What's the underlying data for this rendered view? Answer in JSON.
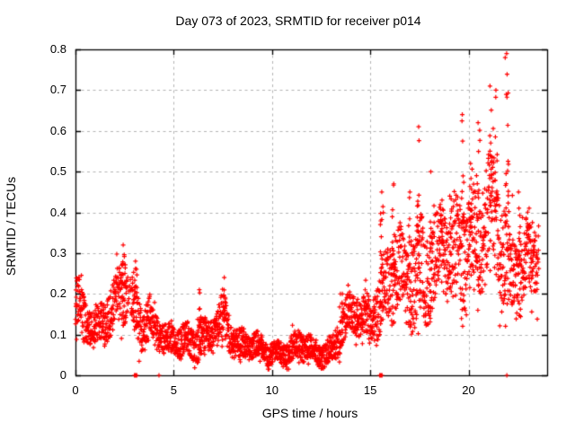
{
  "chart_data": {
    "type": "scatter",
    "title": "Day 073 of 2023, SRMTID for receiver p014",
    "xlabel": "GPS time / hours",
    "ylabel": "SRMTID / TECUs",
    "xlim": [
      0,
      24
    ],
    "ylim": [
      0,
      0.8
    ],
    "xticks": [
      0,
      5,
      10,
      15,
      20
    ],
    "yticks": [
      0,
      0.1,
      0.2,
      0.3,
      0.4,
      0.5,
      0.6,
      0.7,
      0.8
    ],
    "grid": true,
    "legend": "none",
    "marker": "plus",
    "marker_color": "#ff0000",
    "grid_color": "#b4b4b4",
    "axis_color": "#000000",
    "background_color": "#ffffff",
    "seed": 20230073,
    "dt": 0.008333,
    "t_end": 23.58,
    "envelope": [
      [
        0.0,
        0.17,
        0.07
      ],
      [
        0.5,
        0.13,
        0.045
      ],
      [
        1.0,
        0.12,
        0.04
      ],
      [
        1.5,
        0.15,
        0.055
      ],
      [
        2.0,
        0.16,
        0.06
      ],
      [
        2.4,
        0.2,
        0.08
      ],
      [
        2.7,
        0.17,
        0.06
      ],
      [
        3.0,
        0.16,
        0.07
      ],
      [
        3.4,
        0.13,
        0.05
      ],
      [
        3.7,
        0.15,
        0.06
      ],
      [
        4.1,
        0.11,
        0.04
      ],
      [
        4.5,
        0.085,
        0.035
      ],
      [
        5.0,
        0.08,
        0.03
      ],
      [
        5.5,
        0.09,
        0.04
      ],
      [
        6.0,
        0.085,
        0.035
      ],
      [
        6.3,
        0.1,
        0.05
      ],
      [
        6.7,
        0.085,
        0.035
      ],
      [
        7.1,
        0.1,
        0.04
      ],
      [
        7.5,
        0.13,
        0.055
      ],
      [
        7.9,
        0.11,
        0.045
      ],
      [
        8.3,
        0.08,
        0.035
      ],
      [
        8.8,
        0.075,
        0.03
      ],
      [
        9.3,
        0.065,
        0.03
      ],
      [
        9.8,
        0.05,
        0.025
      ],
      [
        10.3,
        0.06,
        0.025
      ],
      [
        10.8,
        0.065,
        0.03
      ],
      [
        11.3,
        0.07,
        0.035
      ],
      [
        11.8,
        0.065,
        0.03
      ],
      [
        12.3,
        0.05,
        0.025
      ],
      [
        12.8,
        0.06,
        0.03
      ],
      [
        13.2,
        0.08,
        0.035
      ],
      [
        13.6,
        0.12,
        0.045
      ],
      [
        14.0,
        0.14,
        0.045
      ],
      [
        14.5,
        0.15,
        0.05
      ],
      [
        15.0,
        0.14,
        0.05
      ],
      [
        15.5,
        0.19,
        0.08
      ],
      [
        16.0,
        0.22,
        0.09
      ],
      [
        16.4,
        0.24,
        0.1
      ],
      [
        16.8,
        0.21,
        0.08
      ],
      [
        17.2,
        0.25,
        0.11
      ],
      [
        17.6,
        0.28,
        0.12
      ],
      [
        18.0,
        0.26,
        0.1
      ],
      [
        18.4,
        0.27,
        0.1
      ],
      [
        18.8,
        0.3,
        0.1
      ],
      [
        19.2,
        0.3,
        0.11
      ],
      [
        19.6,
        0.32,
        0.12
      ],
      [
        20.0,
        0.34,
        0.12
      ],
      [
        20.4,
        0.33,
        0.12
      ],
      [
        20.8,
        0.35,
        0.13
      ],
      [
        21.2,
        0.36,
        0.14
      ],
      [
        21.6,
        0.33,
        0.13
      ],
      [
        22.0,
        0.3,
        0.12
      ],
      [
        22.4,
        0.27,
        0.1
      ],
      [
        22.8,
        0.26,
        0.09
      ],
      [
        23.2,
        0.27,
        0.09
      ],
      [
        23.6,
        0.28,
        0.09
      ]
    ],
    "spikes": [
      {
        "t": 2.45,
        "peak": 0.32,
        "n": 14
      },
      {
        "t": 3.05,
        "peak": 0.28,
        "n": 8
      },
      {
        "t": 6.3,
        "peak": 0.21,
        "n": 8
      },
      {
        "t": 7.55,
        "peak": 0.24,
        "n": 10
      },
      {
        "t": 13.5,
        "peak": 0.2,
        "n": 6
      },
      {
        "t": 15.6,
        "peak": 0.45,
        "n": 12
      },
      {
        "t": 16.2,
        "peak": 0.47,
        "n": 12
      },
      {
        "t": 17.0,
        "peak": 0.45,
        "n": 8
      },
      {
        "t": 17.45,
        "peak": 0.61,
        "n": 16
      },
      {
        "t": 18.1,
        "peak": 0.5,
        "n": 10
      },
      {
        "t": 18.65,
        "peak": 0.43,
        "n": 8
      },
      {
        "t": 19.05,
        "peak": 0.44,
        "n": 8
      },
      {
        "t": 19.7,
        "peak": 0.64,
        "n": 16
      },
      {
        "t": 20.1,
        "peak": 0.52,
        "n": 10
      },
      {
        "t": 20.5,
        "peak": 0.62,
        "n": 10
      },
      {
        "t": 21.1,
        "peak": 0.71,
        "n": 13
      },
      {
        "t": 21.4,
        "peak": 0.7,
        "n": 8
      },
      {
        "t": 21.95,
        "peak": 0.79,
        "n": 18
      },
      {
        "t": 22.55,
        "peak": 0.45,
        "n": 8
      },
      {
        "t": 23.1,
        "peak": 0.41,
        "n": 6
      }
    ],
    "zero_points": [
      3.0,
      3.04,
      3.08,
      3.12,
      4.25,
      15.48,
      15.52,
      15.56,
      15.6,
      21.95
    ],
    "gaps": [
      [
        2.62,
        2.85,
        0.7
      ]
    ]
  }
}
